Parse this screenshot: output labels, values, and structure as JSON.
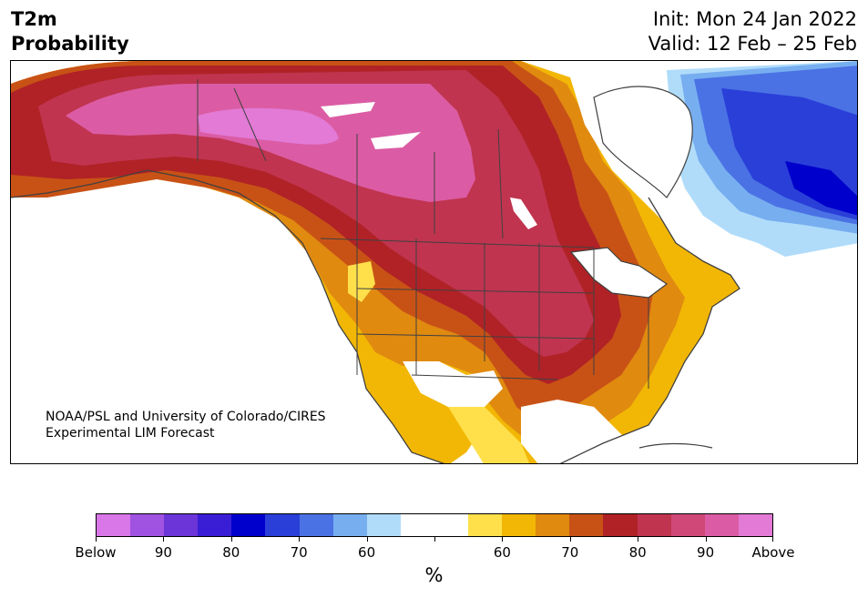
{
  "title": {
    "line1": "T2m",
    "line2": "Probability"
  },
  "init": {
    "line1": "Init: Mon 24 Jan 2022",
    "line2": "Valid: 12 Feb – 25 Feb"
  },
  "credit": {
    "line1": "NOAA/PSL and University of Colorado/CIRES",
    "line2": "Experimental LIM Forecast"
  },
  "colorbar": {
    "colors": [
      "#d977e8",
      "#a052e0",
      "#6c35d8",
      "#3a1ed6",
      "#0000cc",
      "#2a3fd8",
      "#4a72e4",
      "#77aef0",
      "#b0dcfa",
      "#ffffff",
      "#ffffff",
      "#ffe04a",
      "#f2b705",
      "#e08a10",
      "#c85216",
      "#b02226",
      "#c0344f",
      "#d04878",
      "#db5ca4",
      "#e27ad6"
    ],
    "labels": [
      "Below",
      "90",
      "80",
      "70",
      "60",
      "",
      "60",
      "70",
      "80",
      "90",
      "Above"
    ],
    "unit": "%"
  },
  "map": {
    "region": "North America",
    "colors": {
      "above_max": "#e27ad6",
      "above_90": "#db5ca4",
      "above_80": "#c0344f",
      "above_75": "#b02226",
      "above_70": "#c85216",
      "above_65": "#e08a10",
      "above_60": "#f2b705",
      "above_55": "#ffe04a",
      "below_55": "#b0dcfa",
      "below_60": "#77aef0",
      "below_65": "#4a72e4",
      "below_70": "#2a3fd8",
      "below_80": "#0000cc"
    }
  }
}
